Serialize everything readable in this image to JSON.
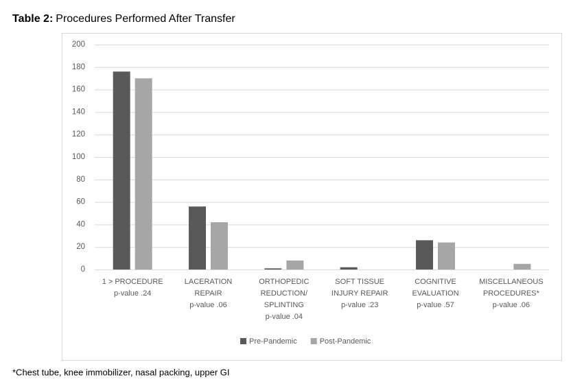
{
  "title_label": "Table 2:",
  "title": "Procedures Performed After Transfer",
  "footnote": "*Chest tube, knee immobilizer, nasal packing, upper GI",
  "chart_data": {
    "type": "bar",
    "categories": [
      "1 > PROCEDURE\np-value .24",
      "LACERATION\nREPAIR\np-value .06",
      "ORTHOPEDIC\nREDUCTION/\nSPLINTING\np-value .04",
      "SOFT TISSUE\nINJURY REPAIR\np-value .23",
      "COGNITIVE\nEVALUATION\np-value .57",
      "MISCELLANEOUS\nPROCEDURES*\np-value .06"
    ],
    "series": [
      {
        "name": "Pre-Pandemic",
        "color": "#595959",
        "values": [
          176,
          56,
          1,
          2,
          26,
          0
        ]
      },
      {
        "name": "Post-Pandemic",
        "color": "#a6a6a6",
        "values": [
          170,
          42,
          8,
          0,
          24,
          5
        ]
      }
    ],
    "ylim": [
      0,
      200
    ],
    "yticks": [
      0,
      20,
      40,
      60,
      80,
      100,
      120,
      140,
      160,
      180,
      200
    ],
    "grid": true,
    "legend": "bottom"
  }
}
